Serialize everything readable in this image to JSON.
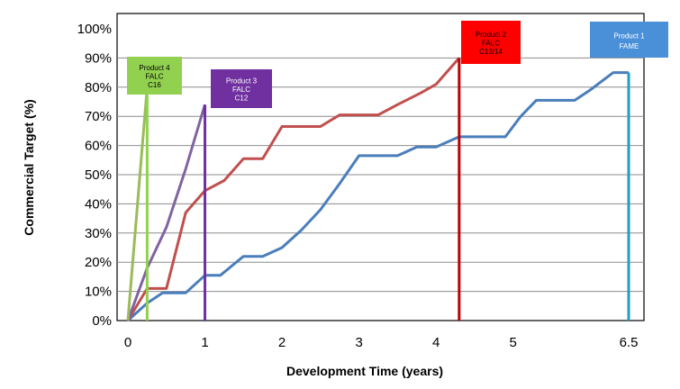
{
  "chart_data": {
    "type": "line",
    "xlabel": "Development Time (years)",
    "ylabel": "Commercial Target (%)",
    "xlim": [
      0,
      6.5
    ],
    "ylim": [
      0,
      100
    ],
    "x_ticks": [
      0,
      1,
      2,
      3,
      4,
      5,
      6.5
    ],
    "y_ticks": [
      "0%",
      "10%",
      "20%",
      "30%",
      "40%",
      "50%",
      "60%",
      "70%",
      "80%",
      "90%",
      "100%"
    ],
    "grid": "horizontal",
    "series": [
      {
        "color": "#4a7ebb",
        "points": [
          [
            0,
            0
          ],
          [
            0.25,
            6
          ],
          [
            0.45,
            9.5
          ],
          [
            0.75,
            9.5
          ],
          [
            1,
            15.5
          ],
          [
            1.2,
            15.5
          ],
          [
            1.5,
            22
          ],
          [
            1.75,
            22
          ],
          [
            2,
            25
          ],
          [
            2.25,
            31
          ],
          [
            2.5,
            38
          ],
          [
            2.75,
            47
          ],
          [
            3,
            56.5
          ],
          [
            3.5,
            56.5
          ],
          [
            3.75,
            59.5
          ],
          [
            4,
            59.5
          ],
          [
            4.3,
            63
          ],
          [
            4.9,
            63
          ],
          [
            5.1,
            70
          ],
          [
            5.3,
            75.5
          ],
          [
            5.8,
            75.5
          ],
          [
            6,
            79
          ],
          [
            6.3,
            85
          ],
          [
            6.5,
            85
          ]
        ],
        "end_marker": {
          "x": 6.5,
          "color": "#1f9ec0",
          "label": [
            "Product 1",
            "FAME"
          ],
          "label_bg": "#4a90d9",
          "label_color": "#ffffff"
        }
      },
      {
        "color": "#c0504d",
        "points": [
          [
            0,
            0
          ],
          [
            0.25,
            11
          ],
          [
            0.5,
            11
          ],
          [
            0.75,
            37
          ],
          [
            1,
            44.5
          ],
          [
            1.25,
            48
          ],
          [
            1.5,
            55.5
          ],
          [
            1.75,
            55.5
          ],
          [
            2,
            66.5
          ],
          [
            2.5,
            66.5
          ],
          [
            2.75,
            70.5
          ],
          [
            3.25,
            70.5
          ],
          [
            3.5,
            74
          ],
          [
            3.8,
            78
          ],
          [
            4,
            81
          ],
          [
            4.3,
            90
          ]
        ],
        "end_marker": {
          "x": 4.3,
          "color": "#c00000",
          "label": [
            "Product 2",
            "FALC",
            "C12/14"
          ],
          "label_bg": "#ff0000",
          "label_color": "#000000"
        }
      },
      {
        "color": "#8064a2",
        "points": [
          [
            0,
            0
          ],
          [
            0.25,
            18
          ],
          [
            0.5,
            32
          ],
          [
            0.75,
            52
          ],
          [
            1,
            74
          ]
        ],
        "end_marker": {
          "x": 1,
          "color": "#7030a0",
          "label": [
            "Product 3",
            "FALC",
            "C12"
          ],
          "label_bg": "#7030a0",
          "label_color": "#ffffff"
        }
      },
      {
        "color": "#9bbb59",
        "points": [
          [
            0,
            0
          ],
          [
            0.25,
            80
          ]
        ],
        "end_marker": {
          "x": 0.25,
          "color": "#92d050",
          "label": [
            "Product 4",
            "FALC",
            "C16"
          ],
          "label_bg": "#92d050",
          "label_color": "#000000"
        }
      }
    ]
  }
}
